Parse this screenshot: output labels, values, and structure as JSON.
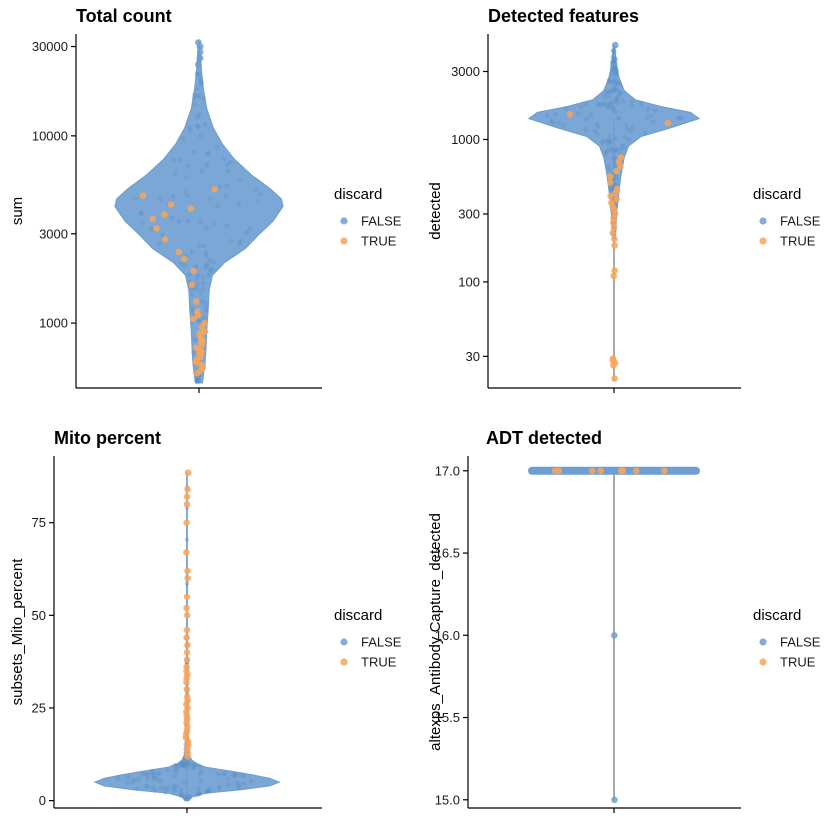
{
  "legend": {
    "title": "discard",
    "entries": [
      {
        "label": "FALSE",
        "color": "#6f9fd1"
      },
      {
        "label": "TRUE",
        "color": "#f9a55a"
      }
    ]
  },
  "chart_data": [
    {
      "type": "violin",
      "title": "Total count",
      "xlabel": "",
      "ylabel": "sum",
      "scale": "log10",
      "ylim": [
        450,
        35000
      ],
      "ticks": [
        1000,
        3000,
        10000,
        30000
      ],
      "tick_labels": [
        "1000",
        "3000",
        "10000",
        "30000"
      ],
      "profile": [
        [
          480,
          0.04
        ],
        [
          520,
          0.05
        ],
        [
          600,
          0.07
        ],
        [
          700,
          0.08
        ],
        [
          900,
          0.09
        ],
        [
          1200,
          0.11
        ],
        [
          1500,
          0.12
        ],
        [
          1800,
          0.16
        ],
        [
          2100,
          0.3
        ],
        [
          2500,
          0.55
        ],
        [
          3000,
          0.72
        ],
        [
          3500,
          0.88
        ],
        [
          4200,
          1.0
        ],
        [
          4600,
          0.98
        ],
        [
          5200,
          0.85
        ],
        [
          6200,
          0.62
        ],
        [
          7500,
          0.42
        ],
        [
          9000,
          0.28
        ],
        [
          11000,
          0.17
        ],
        [
          14000,
          0.09
        ],
        [
          18000,
          0.05
        ],
        [
          22000,
          0.03
        ],
        [
          27000,
          0.015
        ],
        [
          32000,
          0.0
        ]
      ],
      "discard_true": [
        540,
        560,
        580,
        600,
        620,
        640,
        660,
        690,
        700,
        720,
        740,
        760,
        790,
        800,
        820,
        850,
        880,
        900,
        950,
        1000,
        1050,
        1100,
        1150,
        1300,
        1600,
        1900,
        2200,
        2400,
        2800,
        3200,
        3600,
        3800,
        4100,
        4300,
        4800,
        5200
      ],
      "discard_false_outliers": [
        24000,
        26000,
        28000,
        30000,
        31500
      ]
    },
    {
      "type": "violin",
      "title": "Detected features",
      "xlabel": "",
      "ylabel": "detected",
      "scale": "log10",
      "ylim": [
        18,
        5500
      ],
      "ticks": [
        30,
        100,
        300,
        1000,
        3000
      ],
      "tick_labels": [
        "30",
        "100",
        "300",
        "1000",
        "3000"
      ],
      "profile": [
        [
          200,
          0.015
        ],
        [
          300,
          0.03
        ],
        [
          400,
          0.05
        ],
        [
          500,
          0.07
        ],
        [
          600,
          0.09
        ],
        [
          750,
          0.12
        ],
        [
          900,
          0.17
        ],
        [
          1050,
          0.32
        ],
        [
          1200,
          0.65
        ],
        [
          1400,
          1.0
        ],
        [
          1550,
          0.9
        ],
        [
          1700,
          0.55
        ],
        [
          1900,
          0.25
        ],
        [
          2200,
          0.12
        ],
        [
          2700,
          0.06
        ],
        [
          3300,
          0.03
        ],
        [
          4000,
          0.015
        ],
        [
          4600,
          0.0
        ]
      ],
      "whisker": [
        20,
        1400
      ],
      "discard_true": [
        21,
        26,
        27,
        28,
        29,
        110,
        120,
        180,
        200,
        220,
        240,
        260,
        280,
        300,
        320,
        340,
        360,
        380,
        400,
        420,
        450,
        500,
        550,
        600,
        650,
        700,
        750,
        1300,
        1500
      ],
      "discard_false_outliers": [
        4600
      ]
    },
    {
      "type": "violin",
      "title": "Mito percent",
      "xlabel": "",
      "ylabel": "subsets_Mito_percent",
      "scale": "linear",
      "ylim": [
        -2,
        93
      ],
      "ticks": [
        0,
        25,
        50,
        75
      ],
      "tick_labels": [
        "0",
        "25",
        "50",
        "75"
      ],
      "profile": [
        [
          0,
          0.02
        ],
        [
          1,
          0.05
        ],
        [
          2,
          0.2
        ],
        [
          3,
          0.6
        ],
        [
          4,
          0.9
        ],
        [
          5,
          1.0
        ],
        [
          6,
          0.9
        ],
        [
          7,
          0.7
        ],
        [
          8,
          0.45
        ],
        [
          9,
          0.2
        ],
        [
          10,
          0.1
        ],
        [
          11,
          0.05
        ],
        [
          12,
          0.03
        ],
        [
          14,
          0.02
        ],
        [
          16,
          0.015
        ],
        [
          20,
          0.01
        ],
        [
          30,
          0.005
        ],
        [
          40,
          0.003
        ],
        [
          88,
          0.0
        ]
      ],
      "whisker": [
        0,
        88.5
      ],
      "discard_true": [
        12,
        13,
        14,
        15,
        16,
        17,
        18,
        19,
        20,
        21,
        22,
        23,
        24,
        25,
        26,
        27,
        28,
        30,
        32,
        33,
        34,
        35,
        36,
        38,
        40,
        42,
        44,
        46,
        50,
        52,
        55,
        60,
        62,
        67,
        75,
        80,
        82,
        84,
        88.5
      ],
      "discard_false_outliers": []
    },
    {
      "type": "violin",
      "title": "ADT detected",
      "xlabel": "",
      "ylabel": "altexps_Antibody Capture_detected",
      "scale": "linear",
      "ylim": [
        14.95,
        17.09
      ],
      "ticks": [
        15.0,
        15.5,
        16.0,
        16.5,
        17.0
      ],
      "tick_labels": [
        "15.0",
        "15.5",
        "16.0",
        "16.5",
        "17.0"
      ],
      "profile": [
        [
          16.995,
          0.0
        ],
        [
          17.0,
          1.0
        ],
        [
          17.005,
          0.0
        ]
      ],
      "whisker": [
        15.0,
        17.0
      ],
      "discard_true": [
        17.0,
        17.0,
        17.0,
        17.0,
        17.0,
        17.0,
        17.0,
        17.0
      ],
      "discard_false_outliers": [
        16.0,
        15.0
      ]
    }
  ]
}
